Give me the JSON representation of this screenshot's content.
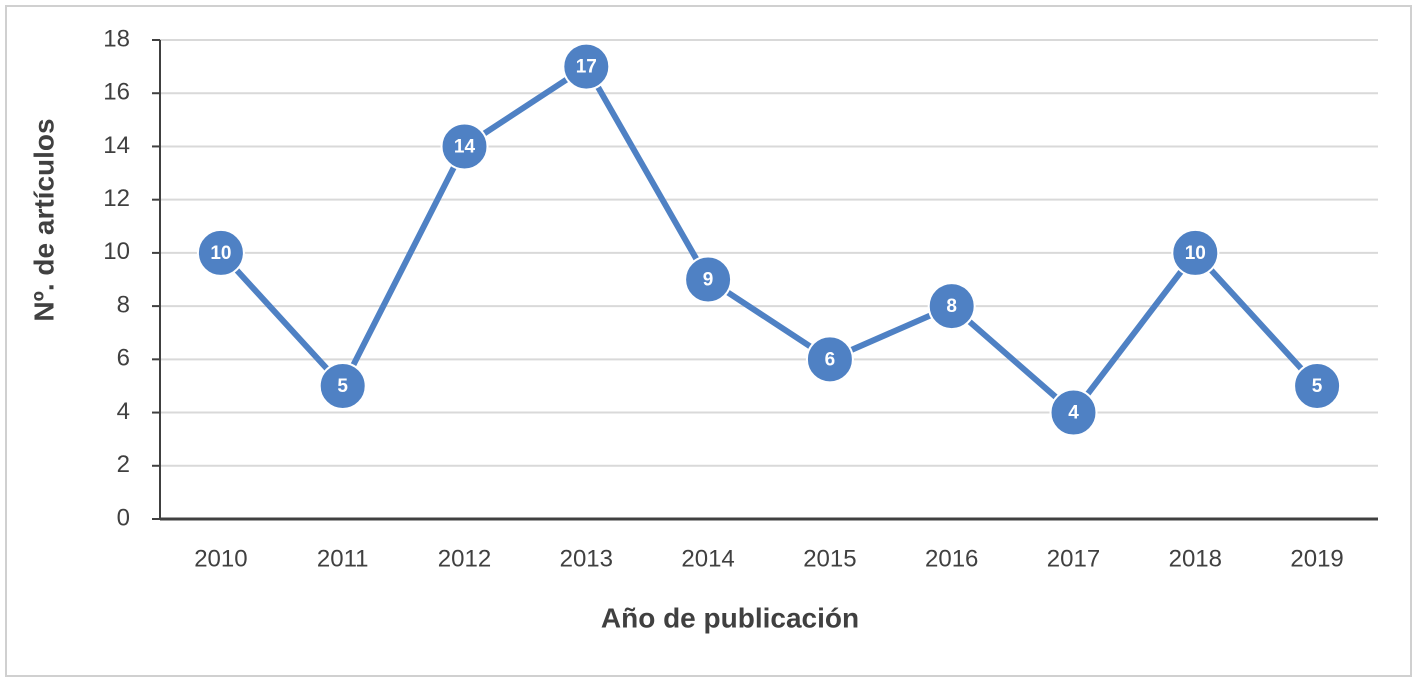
{
  "chart_data": {
    "type": "line",
    "x_label": "Año de publicación",
    "y_label": "Nº. de artículos",
    "categories": [
      "2010",
      "2011",
      "2012",
      "2013",
      "2014",
      "2015",
      "2016",
      "2017",
      "2018",
      "2019"
    ],
    "series": [
      {
        "name": "Nº. de artículos",
        "color": "#4f81c4",
        "values": [
          10,
          5,
          14,
          17,
          9,
          6,
          8,
          4,
          10,
          5
        ]
      }
    ],
    "ylim": [
      0,
      18
    ],
    "yticks": [
      0,
      2,
      4,
      6,
      8,
      10,
      12,
      14,
      16,
      18
    ],
    "grid": true
  }
}
